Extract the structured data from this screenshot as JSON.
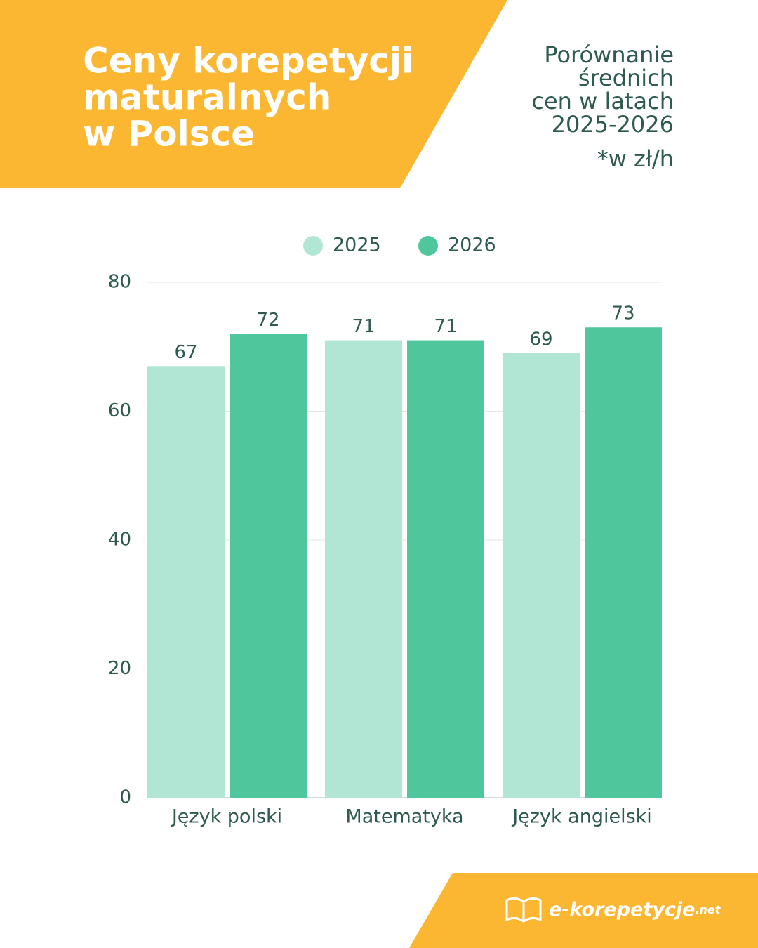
{
  "chart_data": {
    "type": "bar",
    "title": [
      "Ceny korepetycji",
      "maturalnych",
      "w Polsce"
    ],
    "subtitle": [
      "Porównanie",
      "średnich",
      "cen w latach",
      "2025-2026"
    ],
    "note": "*w zł/h",
    "categories": [
      "Język polski",
      "Matematyka",
      "Język angielski"
    ],
    "series": [
      {
        "name": "2025",
        "color": "#b2e6d4",
        "values": [
          67,
          71,
          69
        ]
      },
      {
        "name": "2026",
        "color": "#4fc69b",
        "values": [
          72,
          71,
          73
        ]
      }
    ],
    "ylim": [
      0,
      80
    ],
    "yticks": [
      0,
      20,
      40,
      60,
      80
    ],
    "grid": true,
    "legend": "top"
  },
  "footer": {
    "brand": "e-korepetycje",
    "suffix": ".net"
  }
}
